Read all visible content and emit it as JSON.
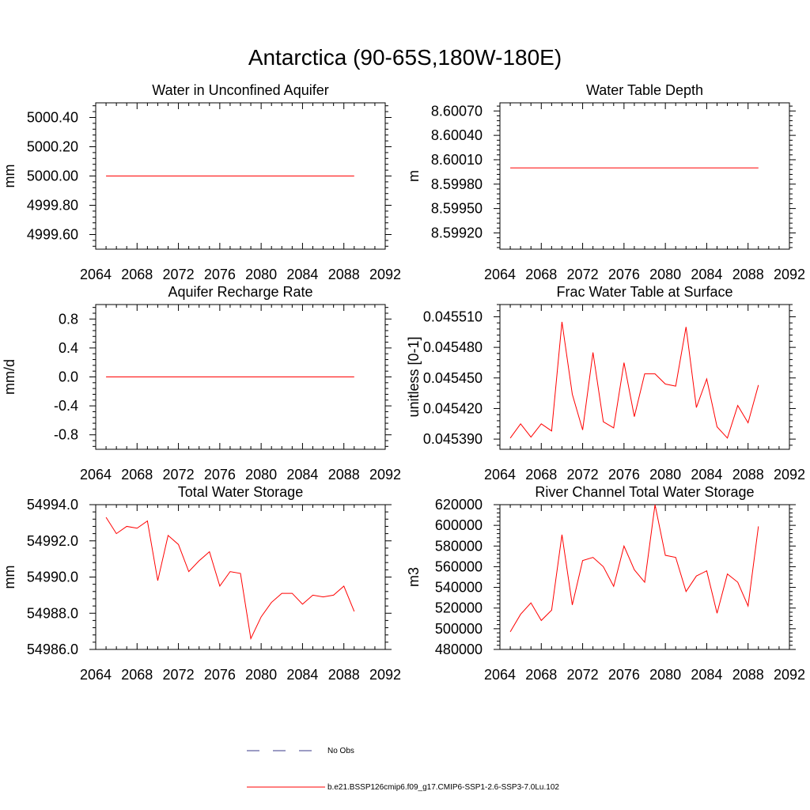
{
  "page_title": "Antarctica (90-65S,180W-180E)",
  "legend": {
    "entries": [
      {
        "label": "No Obs",
        "color": "#3a3a8a",
        "style": "dashed"
      },
      {
        "label": "b.e21.BSSP126cmip6.f09_g17.CMIP6-SSP1-2.6-SSP3-7.0Lu.102",
        "color": "#ff0000",
        "style": "solid"
      }
    ]
  },
  "chart_data": [
    {
      "type": "line",
      "title": "Water in Unconfined Aquifer",
      "ylabel": "mm",
      "xlim": [
        2064,
        2092
      ],
      "xticks": [
        2064,
        2068,
        2072,
        2076,
        2080,
        2084,
        2088,
        2092
      ],
      "ylim": [
        4999.5,
        5000.5
      ],
      "yticks": [
        4999.6,
        4999.8,
        5000.0,
        5000.2,
        5000.4
      ],
      "ytick_labels": [
        "4999.60",
        "4999.80",
        "5000.00",
        "5000.20",
        "5000.40"
      ],
      "series": [
        {
          "color": "#ff0000",
          "x": [
            2065,
            2066,
            2067,
            2068,
            2069,
            2070,
            2071,
            2072,
            2073,
            2074,
            2075,
            2076,
            2077,
            2078,
            2079,
            2080,
            2081,
            2082,
            2083,
            2084,
            2085,
            2086,
            2087,
            2088,
            2089
          ],
          "y": [
            5000,
            5000,
            5000,
            5000,
            5000,
            5000,
            5000,
            5000,
            5000,
            5000,
            5000,
            5000,
            5000,
            5000,
            5000,
            5000,
            5000,
            5000,
            5000,
            5000,
            5000,
            5000,
            5000,
            5000,
            5000
          ]
        }
      ]
    },
    {
      "type": "line",
      "title": "Water Table Depth",
      "ylabel": "m",
      "xlim": [
        2064,
        2092
      ],
      "xticks": [
        2064,
        2068,
        2072,
        2076,
        2080,
        2084,
        2088,
        2092
      ],
      "ylim": [
        8.599,
        8.6008
      ],
      "yticks": [
        8.5992,
        8.5995,
        8.5998,
        8.6001,
        8.6004,
        8.6007
      ],
      "ytick_labels": [
        "8.59920",
        "8.59950",
        "8.59980",
        "8.60010",
        "8.60040",
        "8.60070"
      ],
      "series": [
        {
          "color": "#ff0000",
          "x": [
            2065,
            2066,
            2067,
            2068,
            2069,
            2070,
            2071,
            2072,
            2073,
            2074,
            2075,
            2076,
            2077,
            2078,
            2079,
            2080,
            2081,
            2082,
            2083,
            2084,
            2085,
            2086,
            2087,
            2088,
            2089
          ],
          "y": [
            8.6,
            8.6,
            8.6,
            8.6,
            8.6,
            8.6,
            8.6,
            8.6,
            8.6,
            8.6,
            8.6,
            8.6,
            8.6,
            8.6,
            8.6,
            8.6,
            8.6,
            8.6,
            8.6,
            8.6,
            8.6,
            8.6,
            8.6,
            8.6,
            8.6
          ]
        }
      ]
    },
    {
      "type": "line",
      "title": "Aquifer Recharge Rate",
      "ylabel": "mm/d",
      "xlim": [
        2064,
        2092
      ],
      "xticks": [
        2064,
        2068,
        2072,
        2076,
        2080,
        2084,
        2088,
        2092
      ],
      "ylim": [
        -1.0,
        1.0
      ],
      "yticks": [
        -0.8,
        -0.4,
        0.0,
        0.4,
        0.8
      ],
      "ytick_labels": [
        "-0.8",
        "-0.4",
        "0.0",
        "0.4",
        "0.8"
      ],
      "series": [
        {
          "color": "#ff0000",
          "x": [
            2065,
            2066,
            2067,
            2068,
            2069,
            2070,
            2071,
            2072,
            2073,
            2074,
            2075,
            2076,
            2077,
            2078,
            2079,
            2080,
            2081,
            2082,
            2083,
            2084,
            2085,
            2086,
            2087,
            2088,
            2089
          ],
          "y": [
            0,
            0,
            0,
            0,
            0,
            0,
            0,
            0,
            0,
            0,
            0,
            0,
            0,
            0,
            0,
            0,
            0,
            0,
            0,
            0,
            0,
            0,
            0,
            0,
            0
          ]
        }
      ]
    },
    {
      "type": "line",
      "title": "Frac Water Table at Surface",
      "ylabel": "unitless [0-1]",
      "xlim": [
        2064,
        2092
      ],
      "xticks": [
        2064,
        2068,
        2072,
        2076,
        2080,
        2084,
        2088,
        2092
      ],
      "ylim": [
        0.04538,
        0.045522
      ],
      "yticks": [
        0.04539,
        0.04542,
        0.04545,
        0.04548,
        0.04551
      ],
      "ytick_labels": [
        "0.045390",
        "0.045420",
        "0.045450",
        "0.045480",
        "0.045510"
      ],
      "series": [
        {
          "color": "#ff0000",
          "x": [
            2065,
            2066,
            2067,
            2068,
            2069,
            2070,
            2071,
            2072,
            2073,
            2074,
            2075,
            2076,
            2077,
            2078,
            2079,
            2080,
            2081,
            2082,
            2083,
            2084,
            2085,
            2086,
            2087,
            2088,
            2089
          ],
          "y": [
            0.045391,
            0.045405,
            0.045392,
            0.045405,
            0.045398,
            0.045505,
            0.045434,
            0.045399,
            0.045475,
            0.045407,
            0.045401,
            0.045465,
            0.045412,
            0.045454,
            0.045454,
            0.045444,
            0.045442,
            0.0455,
            0.045421,
            0.045449,
            0.045402,
            0.045391,
            0.045423,
            0.045406,
            0.045443
          ]
        }
      ]
    },
    {
      "type": "line",
      "title": "Total Water Storage",
      "ylabel": "mm",
      "xlim": [
        2064,
        2092
      ],
      "xticks": [
        2064,
        2068,
        2072,
        2076,
        2080,
        2084,
        2088,
        2092
      ],
      "ylim": [
        54986.0,
        54994.0
      ],
      "yticks": [
        54986.0,
        54988.0,
        54990.0,
        54992.0,
        54994.0
      ],
      "ytick_labels": [
        "54986.0",
        "54988.0",
        "54990.0",
        "54992.0",
        "54994.0"
      ],
      "series": [
        {
          "color": "#ff0000",
          "x": [
            2065,
            2066,
            2067,
            2068,
            2069,
            2070,
            2071,
            2072,
            2073,
            2074,
            2075,
            2076,
            2077,
            2078,
            2079,
            2080,
            2081,
            2082,
            2083,
            2084,
            2085,
            2086,
            2087,
            2088,
            2089
          ],
          "y": [
            54993.3,
            54992.4,
            54992.8,
            54992.7,
            54993.1,
            54989.8,
            54992.3,
            54991.8,
            54990.3,
            54990.9,
            54991.4,
            54989.5,
            54990.3,
            54990.2,
            54986.6,
            54987.8,
            54988.6,
            54989.1,
            54989.1,
            54988.5,
            54989.0,
            54988.9,
            54989.0,
            54989.5,
            54988.1
          ]
        }
      ]
    },
    {
      "type": "line",
      "title": "River Channel Total Water Storage",
      "ylabel": "m3",
      "xlim": [
        2064,
        2092
      ],
      "xticks": [
        2064,
        2068,
        2072,
        2076,
        2080,
        2084,
        2088,
        2092
      ],
      "ylim": [
        480000,
        620000
      ],
      "yticks": [
        480000,
        500000,
        520000,
        540000,
        560000,
        580000,
        600000,
        620000
      ],
      "ytick_labels": [
        "480000",
        "500000",
        "520000",
        "540000",
        "560000",
        "580000",
        "600000",
        "620000"
      ],
      "series": [
        {
          "color": "#ff0000",
          "x": [
            2065,
            2066,
            2067,
            2068,
            2069,
            2070,
            2071,
            2072,
            2073,
            2074,
            2075,
            2076,
            2077,
            2078,
            2079,
            2080,
            2081,
            2082,
            2083,
            2084,
            2085,
            2086,
            2087,
            2088,
            2089
          ],
          "y": [
            497000,
            514000,
            525000,
            508000,
            518000,
            591000,
            523000,
            566000,
            569000,
            560000,
            541000,
            580000,
            557000,
            545000,
            620000,
            571000,
            569000,
            536000,
            551000,
            556000,
            515000,
            553000,
            545000,
            522000,
            599000
          ]
        }
      ]
    }
  ]
}
